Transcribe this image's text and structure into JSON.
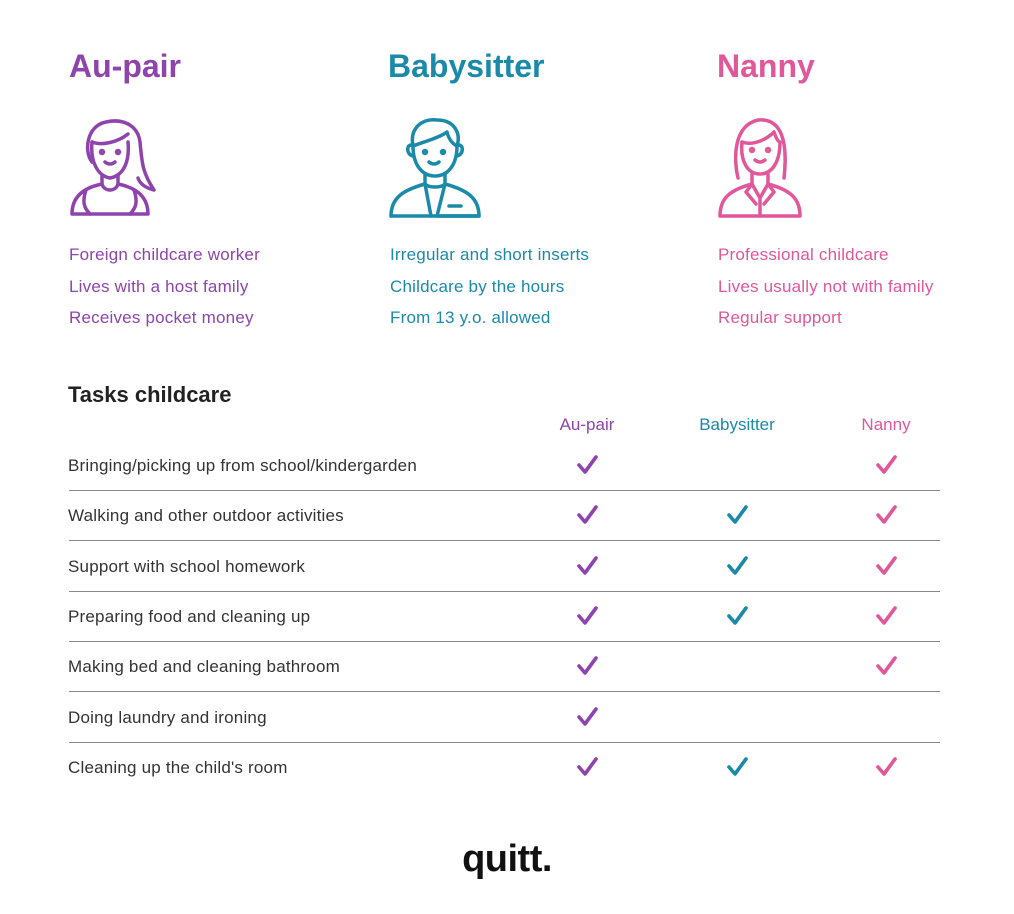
{
  "colors": {
    "aupair": "#8e44ad",
    "babysitter": "#1a8aa8",
    "nanny": "#e0579a"
  },
  "profiles": [
    {
      "title": "Au-pair",
      "icon": "woman-ponytail-icon",
      "features": [
        "Foreign childcare worker",
        "Lives with a host family",
        "Receives pocket money"
      ]
    },
    {
      "title": "Babysitter",
      "icon": "young-man-icon",
      "features": [
        "Irregular and short inserts",
        "Childcare by the hours",
        "From 13 y.o. allowed"
      ]
    },
    {
      "title": "Nanny",
      "icon": "woman-professional-icon",
      "features": [
        "Professional childcare",
        "Lives usually not with family",
        "Regular support"
      ]
    }
  ],
  "tasks": {
    "title": "Tasks childcare",
    "columns": [
      "Au-pair",
      "Babysitter",
      "Nanny"
    ],
    "rows": [
      {
        "label": "Bringing/picking up from school/kindergarden",
        "checks": [
          true,
          false,
          true
        ]
      },
      {
        "label": "Walking and other outdoor activities",
        "checks": [
          true,
          true,
          true
        ]
      },
      {
        "label": "Support with school homework",
        "checks": [
          true,
          true,
          true
        ]
      },
      {
        "label": "Preparing food and cleaning up",
        "checks": [
          true,
          true,
          true
        ]
      },
      {
        "label": "Making bed and cleaning bathroom",
        "checks": [
          true,
          false,
          true
        ]
      },
      {
        "label": "Doing laundry and ironing",
        "checks": [
          true,
          false,
          false
        ]
      },
      {
        "label": "Cleaning up the child's room",
        "checks": [
          true,
          true,
          true
        ]
      }
    ]
  },
  "logo": "quitt."
}
